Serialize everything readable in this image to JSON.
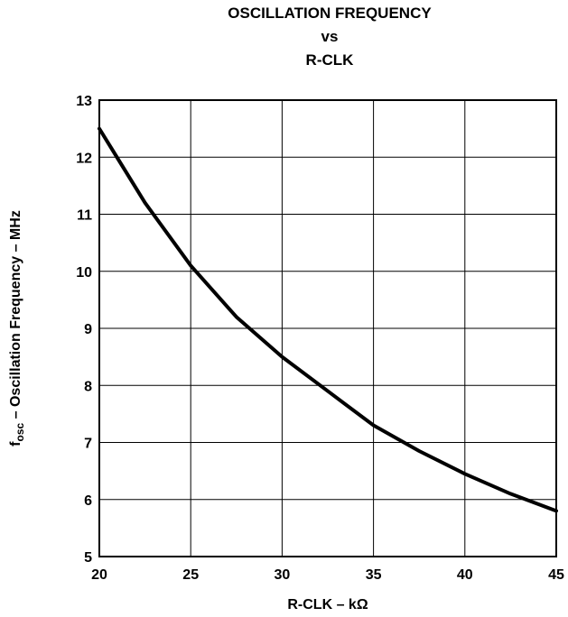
{
  "chart_data": {
    "type": "line",
    "title_lines": [
      "OSCILLATION FREQUENCY",
      "vs",
      "R-CLK"
    ],
    "xlabel": "R-CLK – kΩ",
    "ylabel_main": "f",
    "ylabel_sub": "osc",
    "ylabel_rest": " – Oscillation Frequency – MHz",
    "xlim": [
      20,
      45
    ],
    "ylim": [
      5,
      13
    ],
    "x_ticks": [
      20,
      25,
      30,
      35,
      40,
      45
    ],
    "y_ticks": [
      5,
      6,
      7,
      8,
      9,
      10,
      11,
      12,
      13
    ],
    "grid": true,
    "series": [
      {
        "x": [
          20,
          22.5,
          25,
          27.5,
          30,
          32.5,
          35,
          37.5,
          40,
          42.5,
          45
        ],
        "y": [
          12.5,
          11.2,
          10.1,
          9.2,
          8.5,
          7.9,
          7.3,
          6.85,
          6.45,
          6.1,
          5.8
        ]
      }
    ]
  }
}
